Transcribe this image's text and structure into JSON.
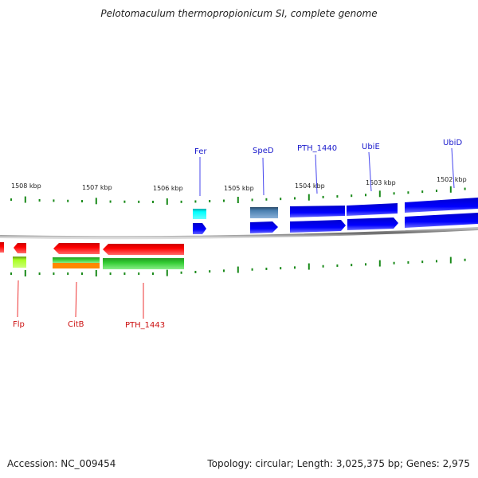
{
  "title": "Pelotomaculum thermopropionicum SI, complete genome",
  "footer": {
    "accession": "Accession: NC_009454",
    "summary": "Topology: circular; Length: 3,025,375 bp; Genes: 2,975"
  },
  "ruler": {
    "labels": [
      "1508 kbp",
      "1507 kbp",
      "1506 kbp",
      "1505 kbp",
      "1504 kbp",
      "1503 kbp",
      "1502 kbp"
    ]
  },
  "genes_top": [
    {
      "label": "Fer",
      "strand": "forward",
      "category_color": "#00e5e5"
    },
    {
      "label": "SpeD",
      "strand": "forward",
      "category_color": "#4a7fb0"
    },
    {
      "label": "PTH_1440",
      "strand": "forward",
      "category_color": "#0000ee"
    },
    {
      "label": "UbiE",
      "strand": "forward",
      "category_color": "#0000ee"
    },
    {
      "label": "UbiD",
      "strand": "forward",
      "category_color": "#0000ee"
    }
  ],
  "genes_bottom": [
    {
      "label": "Flp",
      "strand": "reverse",
      "category_color": "#a8ee22"
    },
    {
      "label": "CitB",
      "strand": "reverse",
      "category_color": "#33cc33",
      "category_color_2": "#ff8800"
    },
    {
      "label": "PTH_1443",
      "strand": "reverse",
      "category_color": "#33cc33"
    }
  ],
  "colors": {
    "forward_gene": "#0000ee",
    "reverse_gene": "#ee0000",
    "tick": "#1a8a1a",
    "backbone": "#888888"
  }
}
